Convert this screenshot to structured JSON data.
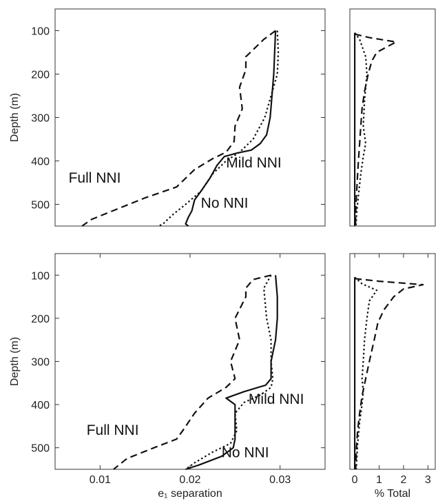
{
  "chart_data": [
    {
      "type": "line",
      "panel": "top-left",
      "xlim": [
        0.005,
        0.035
      ],
      "ylim": [
        550,
        50
      ],
      "xticks": [],
      "yticks": [
        100,
        200,
        300,
        400,
        500
      ],
      "xlabel": "",
      "ylabel": "Depth (m)",
      "annotations": [
        {
          "text": "Full NNI",
          "x": 0.0065,
          "y": 450
        },
        {
          "text": "Mild NNI",
          "x": 0.024,
          "y": 415
        },
        {
          "text": "No NNI",
          "x": 0.0212,
          "y": 508
        }
      ],
      "series": [
        {
          "dash": "solid",
          "points": [
            [
              0.0295,
              100
            ],
            [
              0.0294,
              150
            ],
            [
              0.0293,
              200
            ],
            [
              0.0291,
              250
            ],
            [
              0.0289,
              300
            ],
            [
              0.0285,
              340
            ],
            [
              0.0278,
              360
            ],
            [
              0.0268,
              375
            ],
            [
              0.0252,
              382
            ],
            [
              0.0238,
              390
            ],
            [
              0.023,
              410
            ],
            [
              0.0222,
              440
            ],
            [
              0.0212,
              470
            ],
            [
              0.0205,
              490
            ],
            [
              0.0202,
              515
            ],
            [
              0.0198,
              530
            ],
            [
              0.0195,
              545
            ],
            [
              0.0198,
              550
            ]
          ]
        },
        {
          "dash": "dashed",
          "points": [
            [
              0.0295,
              100
            ],
            [
              0.0282,
              120
            ],
            [
              0.0272,
              140
            ],
            [
              0.0262,
              160
            ],
            [
              0.0262,
              190
            ],
            [
              0.0255,
              230
            ],
            [
              0.0258,
              280
            ],
            [
              0.025,
              320
            ],
            [
              0.0249,
              355
            ],
            [
              0.024,
              380
            ],
            [
              0.0225,
              395
            ],
            [
              0.0205,
              420
            ],
            [
              0.0185,
              460
            ],
            [
              0.015,
              485
            ],
            [
              0.012,
              510
            ],
            [
              0.009,
              535
            ],
            [
              0.008,
              550
            ]
          ]
        },
        {
          "dash": "dotted",
          "points": [
            [
              0.0297,
              100
            ],
            [
              0.0298,
              150
            ],
            [
              0.0297,
              200
            ],
            [
              0.029,
              250
            ],
            [
              0.0283,
              300
            ],
            [
              0.027,
              350
            ],
            [
              0.0255,
              380
            ],
            [
              0.024,
              400
            ],
            [
              0.0225,
              430
            ],
            [
              0.0212,
              470
            ],
            [
              0.0195,
              500
            ],
            [
              0.018,
              525
            ],
            [
              0.017,
              545
            ],
            [
              0.0165,
              550
            ]
          ]
        }
      ]
    },
    {
      "type": "line",
      "panel": "top-right",
      "xlim": [
        -0.2,
        3.3
      ],
      "ylim": [
        550,
        50
      ],
      "xticks": [],
      "yticks": [],
      "xlabel": "",
      "ylabel": "",
      "series": [
        {
          "dash": "solid",
          "points": [
            [
              0.0,
              105
            ],
            [
              0.0,
              200
            ],
            [
              0.0,
              300
            ],
            [
              0.0,
              400
            ],
            [
              0.0,
              500
            ],
            [
              0.0,
              550
            ]
          ]
        },
        {
          "dash": "dashed",
          "points": [
            [
              0.0,
              108
            ],
            [
              0.6,
              116
            ],
            [
              1.7,
              126
            ],
            [
              1.3,
              138
            ],
            [
              0.9,
              150
            ],
            [
              0.7,
              170
            ],
            [
              0.55,
              200
            ],
            [
              0.4,
              240
            ],
            [
              0.3,
              280
            ],
            [
              0.25,
              320
            ],
            [
              0.2,
              360
            ],
            [
              0.15,
              400
            ],
            [
              0.1,
              450
            ],
            [
              0.05,
              500
            ],
            [
              0.03,
              550
            ]
          ]
        },
        {
          "dash": "dotted",
          "points": [
            [
              0.0,
              105
            ],
            [
              0.2,
              120
            ],
            [
              0.45,
              160
            ],
            [
              0.5,
              200
            ],
            [
              0.4,
              260
            ],
            [
              0.35,
              320
            ],
            [
              0.45,
              360
            ],
            [
              0.35,
              390
            ],
            [
              0.25,
              430
            ],
            [
              0.15,
              480
            ],
            [
              0.08,
              520
            ],
            [
              0.05,
              550
            ]
          ]
        }
      ]
    },
    {
      "type": "line",
      "panel": "bottom-left",
      "xlim": [
        0.005,
        0.035
      ],
      "ylim": [
        550,
        50
      ],
      "xticks": [
        0.01,
        0.02,
        0.03
      ],
      "yticks": [
        100,
        200,
        300,
        400,
        500
      ],
      "xlabel": "e₁ separation",
      "ylabel": "Depth (m)",
      "annotations": [
        {
          "text": "Full NNI",
          "x": 0.0085,
          "y": 470
        },
        {
          "text": "Mild NNI",
          "x": 0.0265,
          "y": 398
        },
        {
          "text": "No NNI",
          "x": 0.0235,
          "y": 522
        }
      ],
      "series": [
        {
          "dash": "solid",
          "points": [
            [
              0.0295,
              100
            ],
            [
              0.0297,
              150
            ],
            [
              0.0297,
              200
            ],
            [
              0.0295,
              250
            ],
            [
              0.029,
              300
            ],
            [
              0.029,
              340
            ],
            [
              0.0284,
              355
            ],
            [
              0.026,
              370
            ],
            [
              0.024,
              385
            ],
            [
              0.025,
              400
            ],
            [
              0.025,
              440
            ],
            [
              0.025,
              480
            ],
            [
              0.0248,
              500
            ],
            [
              0.0235,
              520
            ],
            [
              0.021,
              540
            ],
            [
              0.0195,
              550
            ]
          ]
        },
        {
          "dash": "dashed",
          "points": [
            [
              0.029,
              100
            ],
            [
              0.027,
              110
            ],
            [
              0.0262,
              130
            ],
            [
              0.0262,
              150
            ],
            [
              0.025,
              200
            ],
            [
              0.0255,
              250
            ],
            [
              0.0245,
              300
            ],
            [
              0.025,
              340
            ],
            [
              0.024,
              360
            ],
            [
              0.022,
              385
            ],
            [
              0.0205,
              420
            ],
            [
              0.0192,
              460
            ],
            [
              0.0185,
              480
            ],
            [
              0.016,
              500
            ],
            [
              0.013,
              525
            ],
            [
              0.0115,
              550
            ]
          ]
        },
        {
          "dash": "dotted",
          "points": [
            [
              0.029,
              100
            ],
            [
              0.0282,
              130
            ],
            [
              0.0285,
              200
            ],
            [
              0.029,
              250
            ],
            [
              0.029,
              300
            ],
            [
              0.0292,
              340
            ],
            [
              0.029,
              360
            ],
            [
              0.0278,
              378
            ],
            [
              0.026,
              395
            ],
            [
              0.025,
              420
            ],
            [
              0.0252,
              460
            ],
            [
              0.0245,
              490
            ],
            [
              0.0225,
              510
            ],
            [
              0.0205,
              535
            ],
            [
              0.0195,
              550
            ]
          ]
        }
      ]
    },
    {
      "type": "line",
      "panel": "bottom-right",
      "xlim": [
        -0.2,
        3.3
      ],
      "ylim": [
        550,
        50
      ],
      "xticks": [
        0,
        1,
        2,
        3
      ],
      "yticks": [],
      "xlabel": "% Total",
      "ylabel": "",
      "series": [
        {
          "dash": "solid",
          "points": [
            [
              0.0,
              105
            ],
            [
              0.0,
              200
            ],
            [
              0.0,
              300
            ],
            [
              0.0,
              400
            ],
            [
              0.0,
              500
            ],
            [
              0.0,
              550
            ]
          ]
        },
        {
          "dash": "dashed",
          "points": [
            [
              0.0,
              108
            ],
            [
              1.0,
              114
            ],
            [
              2.8,
              122
            ],
            [
              2.0,
              132
            ],
            [
              1.6,
              150
            ],
            [
              1.2,
              180
            ],
            [
              0.95,
              210
            ],
            [
              0.8,
              250
            ],
            [
              0.6,
              300
            ],
            [
              0.45,
              340
            ],
            [
              0.3,
              380
            ],
            [
              0.2,
              420
            ],
            [
              0.12,
              460
            ],
            [
              0.07,
              500
            ],
            [
              0.04,
              550
            ]
          ]
        },
        {
          "dash": "dotted",
          "points": [
            [
              0.0,
              105
            ],
            [
              0.3,
              120
            ],
            [
              0.9,
              135
            ],
            [
              0.6,
              160
            ],
            [
              0.5,
              200
            ],
            [
              0.4,
              250
            ],
            [
              0.35,
              300
            ],
            [
              0.3,
              340
            ],
            [
              0.35,
              370
            ],
            [
              0.3,
              400
            ],
            [
              0.2,
              440
            ],
            [
              0.12,
              490
            ],
            [
              0.06,
              550
            ]
          ]
        }
      ]
    }
  ]
}
